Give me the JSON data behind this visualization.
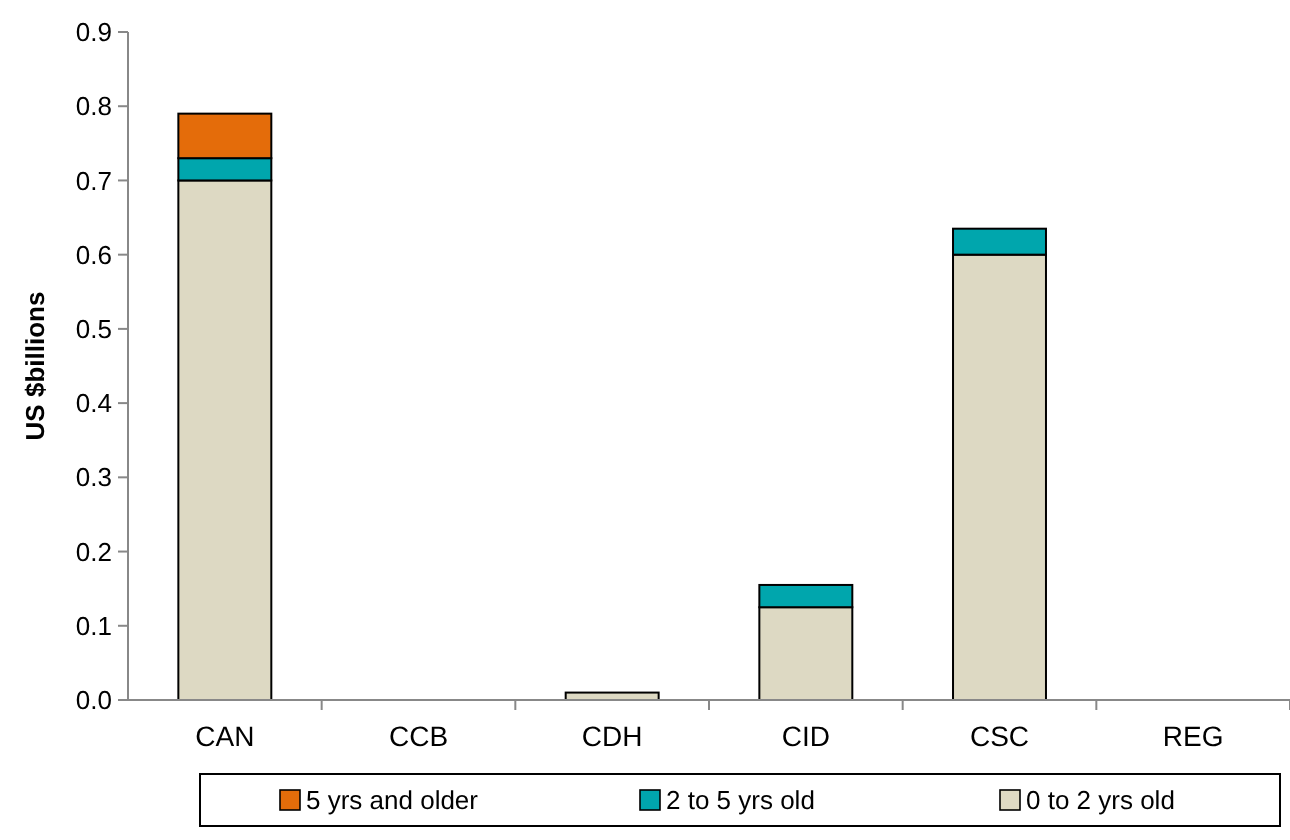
{
  "chart_data": {
    "type": "bar",
    "stacked": true,
    "ylabel": "US $billions",
    "categories": [
      "CAN",
      "CCB",
      "CDH",
      "CID",
      "CSC",
      "REG"
    ],
    "series": [
      {
        "name": "0 to 2 yrs old",
        "color": "#ddd9c3",
        "values": [
          0.7,
          0,
          0.01,
          0.125,
          0.6,
          0
        ]
      },
      {
        "name": "2 to 5 yrs old",
        "color": "#00a6ad",
        "values": [
          0.03,
          0,
          0,
          0.03,
          0.035,
          0
        ]
      },
      {
        "name": "5 yrs and older",
        "color": "#e46c0a",
        "values": [
          0.06,
          0,
          0,
          0,
          0,
          0
        ]
      }
    ],
    "ylim": [
      0,
      0.9
    ],
    "yticks": [
      {
        "value": 0,
        "label": "0.0"
      },
      0.1,
      0.2,
      0.3,
      0.4,
      0.5,
      0.6,
      0.7,
      0.8,
      0.9
    ],
    "legend": "bottom"
  }
}
